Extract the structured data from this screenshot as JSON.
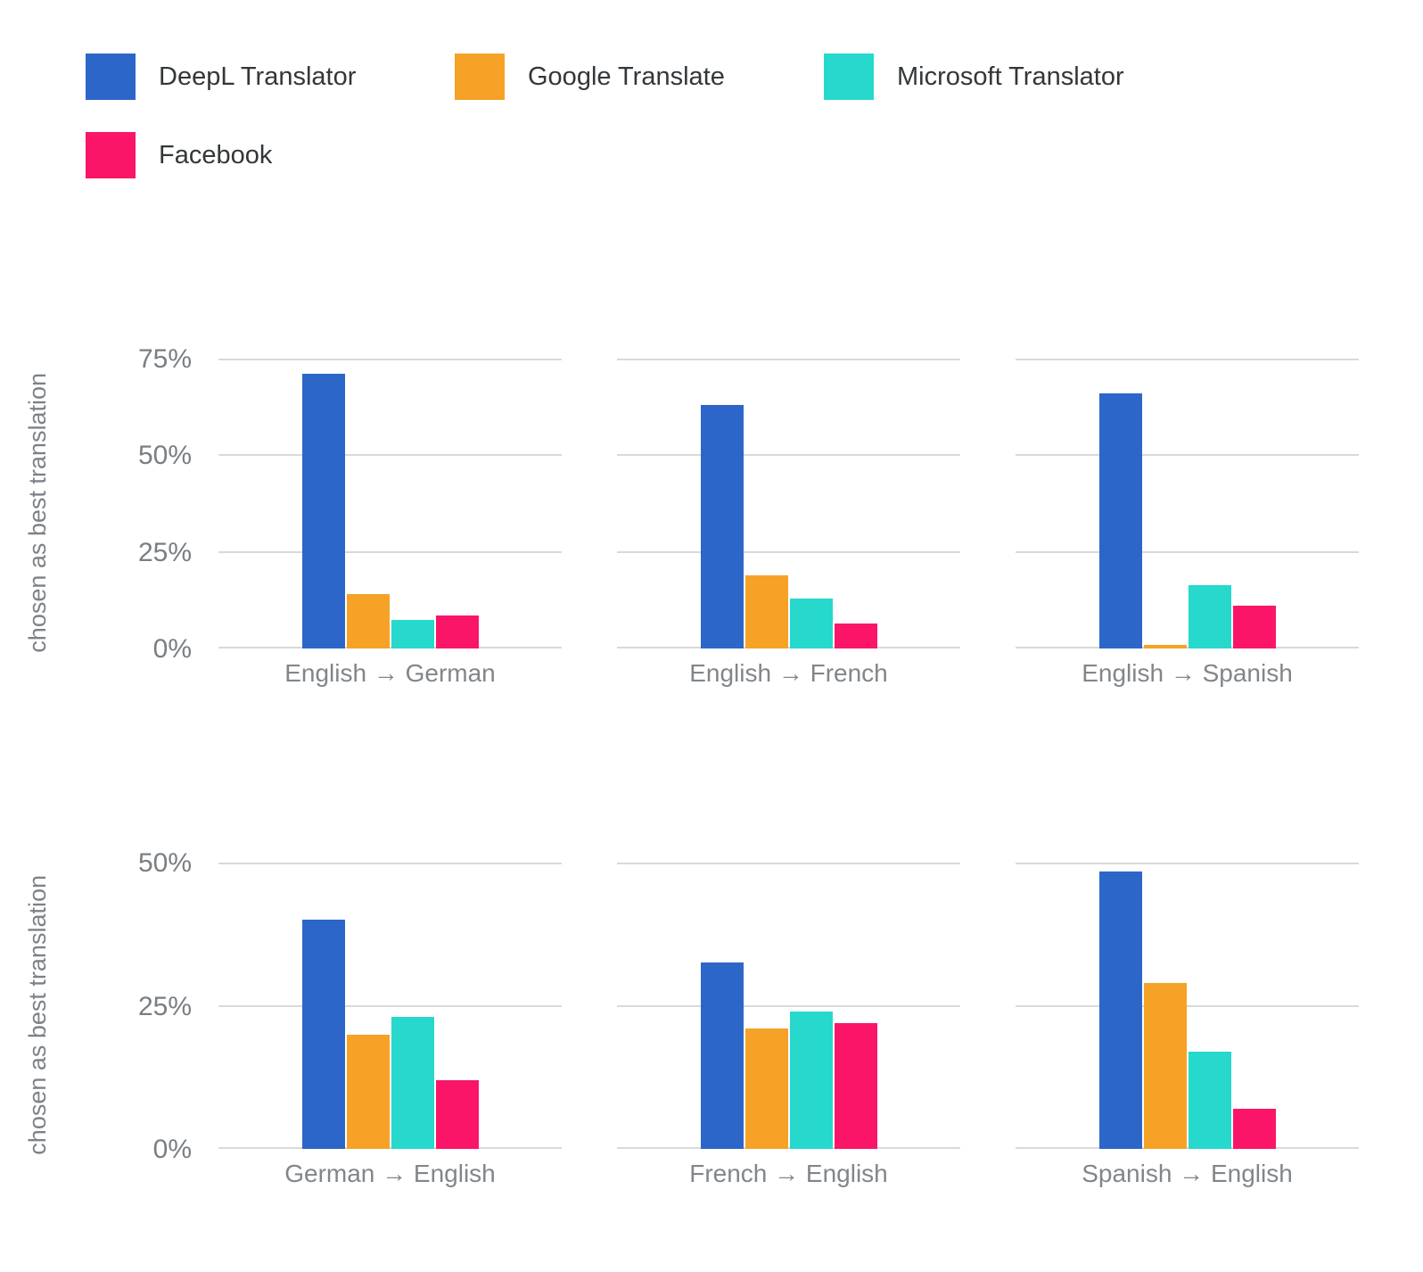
{
  "legend": {
    "items": [
      {
        "label": "DeepL Translator",
        "color": "#2d66c9"
      },
      {
        "label": "Google Translate",
        "color": "#f6a226"
      },
      {
        "label": "Microsoft Translator",
        "color": "#27d8cc"
      },
      {
        "label": "Facebook",
        "color": "#fa1569"
      }
    ]
  },
  "chart_data": {
    "type": "bar",
    "title": "",
    "grid": true,
    "legend_position": "top-left",
    "series_names": [
      "DeepL Translator",
      "Google Translate",
      "Microsoft Translator",
      "Facebook"
    ],
    "series_colors": [
      "#2d66c9",
      "#f6a226",
      "#27d8cc",
      "#fa1569"
    ],
    "rows": [
      {
        "ylabel": "chosen as best translation",
        "ylim": [
          0,
          75
        ],
        "yticks": [
          "75%",
          "50%",
          "25%",
          "0%"
        ],
        "panels": [
          {
            "category": "English → German",
            "values": [
              71,
              14,
              7.5,
              8.5
            ]
          },
          {
            "category": "English → French",
            "values": [
              63,
              19,
              13,
              6.5
            ]
          },
          {
            "category": "English → Spanish",
            "values": [
              66,
              1,
              16.5,
              11
            ]
          }
        ]
      },
      {
        "ylabel": "chosen as best translation",
        "ylim": [
          0,
          50
        ],
        "yticks": [
          "50%",
          "25%",
          "0%"
        ],
        "panels": [
          {
            "category": "German → English",
            "values": [
              40,
              20,
              23,
              12
            ]
          },
          {
            "category": "French → English",
            "values": [
              32.5,
              21,
              24,
              22
            ]
          },
          {
            "category": "Spanish → English",
            "values": [
              48.5,
              29,
              17,
              7
            ]
          }
        ]
      }
    ]
  },
  "colors": {
    "gridline": "#d9d9d9",
    "tick_text": "#797e83",
    "axis_label_text": "#81868b",
    "legend_text": "#33373a",
    "background": "#ffffff"
  }
}
